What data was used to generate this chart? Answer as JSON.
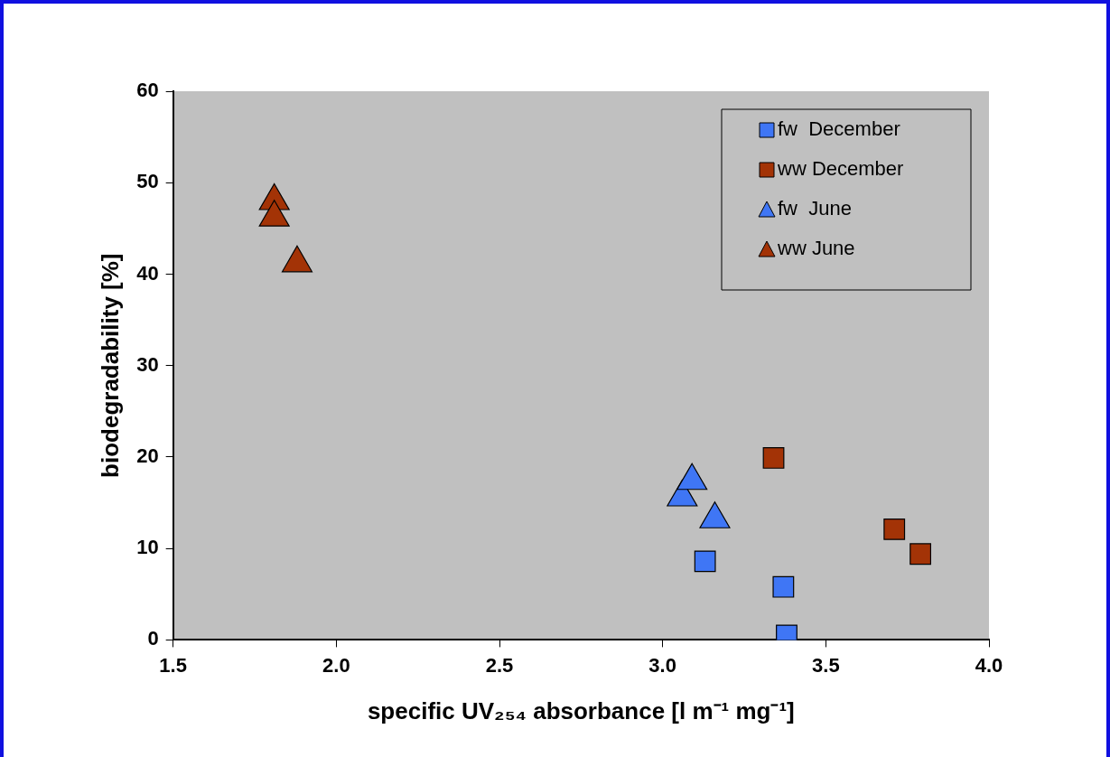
{
  "chart_data": {
    "type": "scatter",
    "xlabel": "specific UV₂₅₄ absorbance [l m⁻¹ mg⁻¹]",
    "ylabel": "biodegradability [%]",
    "xlim": [
      1.5,
      4.0
    ],
    "xticks": [
      {
        "value": 1.5,
        "label": "1.5"
      },
      {
        "value": 2.0,
        "label": "2.0"
      },
      {
        "value": 2.5,
        "label": "2.5"
      },
      {
        "value": 3.0,
        "label": "3.0"
      },
      {
        "value": 3.5,
        "label": "3.5"
      },
      {
        "value": 4.0,
        "label": "4.0"
      }
    ],
    "ylim": [
      0,
      60
    ],
    "yticks": [
      0,
      10,
      20,
      30,
      40,
      50,
      60
    ],
    "grid": false,
    "legend": "top right",
    "series": [
      {
        "name": "fw  December",
        "color": "#3f76f5",
        "marker": "square",
        "x": [
          3.13,
          3.37,
          3.38
        ],
        "values": [
          8.6,
          5.8,
          0.5
        ]
      },
      {
        "name": "ww December",
        "color": "#a33306",
        "marker": "square",
        "x": [
          3.34,
          3.71,
          3.79
        ],
        "values": [
          19.9,
          12.1,
          9.4
        ]
      },
      {
        "name": "fw  June",
        "color": "#3f76f5",
        "marker": "triangle",
        "x": [
          3.06,
          3.09,
          3.16
        ],
        "values": [
          15.6,
          17.4,
          13.2
        ]
      },
      {
        "name": "ww June",
        "color": "#a33306",
        "marker": "triangle",
        "x": [
          1.81,
          1.81,
          1.88
        ],
        "values": [
          48,
          46.2,
          41.2
        ]
      }
    ]
  }
}
